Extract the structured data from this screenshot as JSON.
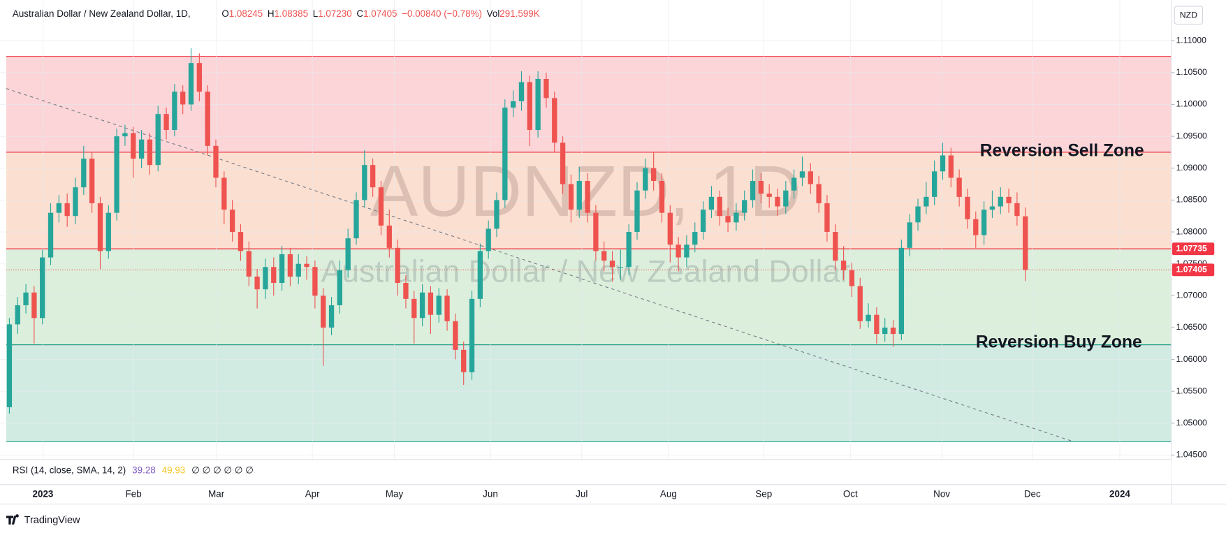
{
  "chart_data": {
    "type": "candlestick",
    "header": {
      "title": "Australian Dollar / New Zealand Dollar, 1D,",
      "fields": [
        {
          "label": "O",
          "value": "1.08245"
        },
        {
          "label": "H",
          "value": "1.08385"
        },
        {
          "label": "L",
          "value": "1.07230"
        },
        {
          "label": "C",
          "value": "1.07405"
        },
        {
          "label": "",
          "value": "−0.00840 (−0.78%)"
        },
        {
          "label": "Vol",
          "value": "291.599K"
        }
      ]
    },
    "currency": "NZD",
    "watermark": {
      "symbol": "AUDNZD, 1D",
      "name": "Australian Dollar / New Zealand Dollar"
    },
    "up_color": "#26a69a",
    "down_color": "#ef5350",
    "candles": {
      "open": [
        1.0525,
        1.0655,
        1.0685,
        1.0705,
        1.0665,
        1.076,
        1.083,
        1.0845,
        1.0825,
        1.087,
        1.0915,
        1.0845,
        1.077,
        1.083,
        1.095,
        1.0955,
        1.0915,
        1.0945,
        1.0905,
        1.0985,
        1.096,
        1.102,
        1.1,
        1.1065,
        1.102,
        1.0935,
        1.0885,
        1.0835,
        1.08,
        1.077,
        1.073,
        1.071,
        1.0745,
        1.072,
        1.0765,
        1.073,
        1.075,
        1.0745,
        1.07,
        1.065,
        1.0685,
        1.074,
        1.079,
        1.085,
        1.0905,
        1.087,
        1.081,
        1.0775,
        1.072,
        1.0695,
        1.0665,
        1.0705,
        1.067,
        1.07,
        1.066,
        1.0615,
        1.058,
        1.0695,
        1.077,
        1.0805,
        1.085,
        1.0995,
        1.1005,
        1.1035,
        1.096,
        1.104,
        1.101,
        1.094,
        1.0875,
        1.0835,
        1.088,
        1.083,
        1.077,
        1.0755,
        1.0745,
        1.0745,
        1.08,
        1.0865,
        1.09,
        1.088,
        1.083,
        1.078,
        1.076,
        1.078,
        1.08,
        1.0835,
        1.0855,
        1.0825,
        1.0815,
        1.083,
        1.085,
        1.088,
        1.086,
        1.0855,
        1.084,
        1.0865,
        1.0885,
        1.0895,
        1.0875,
        1.0845,
        1.08,
        1.0755,
        1.074,
        1.0715,
        1.066,
        1.067,
        1.064,
        1.065,
        1.064,
        1.0775,
        1.0815,
        1.084,
        1.0855,
        1.0895,
        1.092,
        1.0885,
        1.0855,
        1.082,
        1.0795,
        1.0835,
        1.084,
        1.0855,
        1.0845,
        1.08245
      ],
      "high": [
        1.0665,
        1.0698,
        1.0718,
        1.0715,
        1.0772,
        1.0845,
        1.0858,
        1.086,
        1.0885,
        1.0935,
        1.0925,
        1.0855,
        1.0842,
        1.0962,
        1.0968,
        1.0965,
        1.096,
        1.0955,
        1.0998,
        1.0995,
        1.1032,
        1.103,
        1.1088,
        1.108,
        1.103,
        1.0945,
        1.0895,
        1.085,
        1.0812,
        1.0785,
        1.0742,
        1.0758,
        1.076,
        1.0778,
        1.0775,
        1.0765,
        1.0762,
        1.0755,
        1.0712,
        1.0698,
        1.0755,
        1.0805,
        1.0862,
        1.0928,
        1.0915,
        1.088,
        1.0835,
        1.0788,
        1.0732,
        1.0708,
        1.0718,
        1.0715,
        1.0712,
        1.071,
        1.0672,
        1.0628,
        1.0708,
        1.0782,
        1.0818,
        1.0862,
        1.1008,
        1.1022,
        1.1052,
        1.1045,
        1.1052,
        1.105,
        1.102,
        1.095,
        1.089,
        1.0902,
        1.0892,
        1.0842,
        1.0785,
        1.077,
        1.0772,
        1.0812,
        1.0878,
        1.0915,
        1.0925,
        1.0892,
        1.0842,
        1.0792,
        1.0795,
        1.0815,
        1.0848,
        1.0872,
        1.0865,
        1.0838,
        1.0845,
        1.0865,
        1.0898,
        1.0892,
        1.0875,
        1.0868,
        1.088,
        1.0898,
        1.0918,
        1.0908,
        1.0888,
        1.0858,
        1.0812,
        1.0778,
        1.0752,
        1.0728,
        1.0688,
        1.0682,
        1.0665,
        1.0662,
        1.0788,
        1.0828,
        1.0852,
        1.0878,
        1.0912,
        1.094,
        1.0932,
        1.0898,
        1.0868,
        1.0832,
        1.0848,
        1.0865,
        1.087,
        1.0868,
        1.0862,
        1.08385
      ],
      "low": [
        1.0515,
        1.064,
        1.0672,
        1.0625,
        1.0655,
        1.0748,
        1.0815,
        1.0808,
        1.0812,
        1.0858,
        1.083,
        1.0742,
        1.0758,
        1.0818,
        1.0935,
        1.0885,
        1.09,
        1.089,
        1.0895,
        1.0945,
        1.095,
        1.0985,
        1.099,
        1.1005,
        1.092,
        1.087,
        1.0812,
        1.0785,
        1.0755,
        1.0715,
        1.068,
        1.0695,
        1.07,
        1.0708,
        1.0715,
        1.0718,
        1.0725,
        1.068,
        1.059,
        1.0638,
        1.0672,
        1.0728,
        1.078,
        1.0838,
        1.0855,
        1.0795,
        1.076,
        1.07,
        1.068,
        1.0625,
        1.0652,
        1.064,
        1.0658,
        1.0645,
        1.06,
        1.056,
        1.0568,
        1.0682,
        1.0758,
        1.0792,
        1.0838,
        1.098,
        1.099,
        1.0935,
        1.0948,
        1.0995,
        1.0925,
        1.086,
        1.0815,
        1.0822,
        1.0815,
        1.0755,
        1.0738,
        1.0722,
        1.0725,
        1.0732,
        1.0788,
        1.0852,
        1.0865,
        1.0815,
        1.0752,
        1.0738,
        1.0745,
        1.0768,
        1.0788,
        1.0822,
        1.081,
        1.08,
        1.0802,
        1.0818,
        1.0838,
        1.0845,
        1.0838,
        1.0825,
        1.0828,
        1.0852,
        1.0872,
        1.086,
        1.083,
        1.0785,
        1.074,
        1.0725,
        1.0698,
        1.0648,
        1.065,
        1.0625,
        1.0628,
        1.062,
        1.063,
        1.0762,
        1.0802,
        1.0828,
        1.0842,
        1.0882,
        1.087,
        1.084,
        1.0805,
        1.0775,
        1.078,
        1.0822,
        1.0828,
        1.083,
        1.081,
        1.0723
      ],
      "close": [
        1.0655,
        1.0685,
        1.0705,
        1.0665,
        1.076,
        1.083,
        1.0845,
        1.0825,
        1.087,
        1.0915,
        1.0845,
        1.077,
        1.083,
        1.095,
        1.0955,
        1.0915,
        1.0945,
        1.0905,
        1.0985,
        1.096,
        1.102,
        1.1,
        1.1065,
        1.102,
        1.0935,
        1.0885,
        1.0835,
        1.08,
        1.077,
        1.073,
        1.071,
        1.0745,
        1.072,
        1.0765,
        1.073,
        1.075,
        1.0745,
        1.07,
        1.065,
        1.0685,
        1.074,
        1.079,
        1.085,
        1.0905,
        1.087,
        1.081,
        1.0775,
        1.072,
        1.0695,
        1.0665,
        1.0705,
        1.067,
        1.07,
        1.066,
        1.0615,
        1.058,
        1.0695,
        1.077,
        1.0805,
        1.085,
        1.0995,
        1.1005,
        1.1035,
        1.096,
        1.104,
        1.101,
        1.094,
        1.0875,
        1.0835,
        1.088,
        1.083,
        1.077,
        1.0755,
        1.0745,
        1.0745,
        1.08,
        1.0865,
        1.09,
        1.088,
        1.083,
        1.078,
        1.076,
        1.078,
        1.08,
        1.0835,
        1.0855,
        1.0825,
        1.0815,
        1.083,
        1.085,
        1.088,
        1.086,
        1.0855,
        1.084,
        1.0865,
        1.0885,
        1.0895,
        1.0875,
        1.0845,
        1.08,
        1.0755,
        1.074,
        1.0715,
        1.066,
        1.067,
        1.064,
        1.065,
        1.064,
        1.0775,
        1.0815,
        1.084,
        1.0855,
        1.0895,
        1.092,
        1.0885,
        1.0855,
        1.082,
        1.0795,
        1.0835,
        1.084,
        1.0855,
        1.0845,
        1.0825,
        1.07405
      ]
    },
    "ylim": [
      1.0443,
      1.1154
    ],
    "yticks": [
      {
        "value": 1.045,
        "label": "1.04500"
      },
      {
        "value": 1.05,
        "label": "1.05000"
      },
      {
        "value": 1.055,
        "label": "1.05500"
      },
      {
        "value": 1.06,
        "label": "1.06000"
      },
      {
        "value": 1.065,
        "label": "1.06500"
      },
      {
        "value": 1.07,
        "label": "1.07000"
      },
      {
        "value": 1.075,
        "label": "1.07500"
      },
      {
        "value": 1.08,
        "label": "1.08000"
      },
      {
        "value": 1.085,
        "label": "1.08500"
      },
      {
        "value": 1.09,
        "label": "1.09000"
      },
      {
        "value": 1.095,
        "label": "1.09500"
      },
      {
        "value": 1.1,
        "label": "1.10000"
      },
      {
        "value": 1.105,
        "label": "1.10500"
      },
      {
        "value": 1.11,
        "label": "1.11000"
      }
    ],
    "grid": true,
    "xtick_labels": [
      "2023",
      "Feb",
      "Mar",
      "Apr",
      "May",
      "Jun",
      "Jul",
      "Aug",
      "Sep",
      "Oct",
      "Nov",
      "Dec",
      "2024"
    ],
    "zones": [
      {
        "from": 1.0925,
        "to": 1.10755,
        "color": "#fbd5d8",
        "border": "#f23645"
      },
      {
        "from": 1.07735,
        "to": 1.0925,
        "color": "#fbdfd1",
        "border": "#f23645"
      },
      {
        "from": 1.0623,
        "to": 1.07735,
        "color": "#dcefdc",
        "border": "#f23645"
      },
      {
        "from": 1.04709,
        "to": 1.0623,
        "color": "#d1ebe3",
        "border": "#089981"
      }
    ],
    "trendline": {
      "start": 1.1025,
      "end": 1.0471,
      "color": "#787b86"
    },
    "last_price": 1.07405,
    "price_labels": [
      {
        "value": 1.07735,
        "label": "1.07735"
      },
      {
        "value": 1.07405,
        "label": "1.07405"
      }
    ],
    "annotations": [
      "Reversion Sell Zone",
      "Reversion Buy Zone"
    ],
    "rsi": {
      "title": "RSI (14, close, SMA, 14, 2)",
      "rsi_value": "39.28",
      "rsi_color": "#7e57c2",
      "sma_value": "49.93",
      "sma_color": "#f7c625",
      "others": "∅ ∅ ∅ ∅ ∅ ∅"
    },
    "brand": "TradingView"
  }
}
